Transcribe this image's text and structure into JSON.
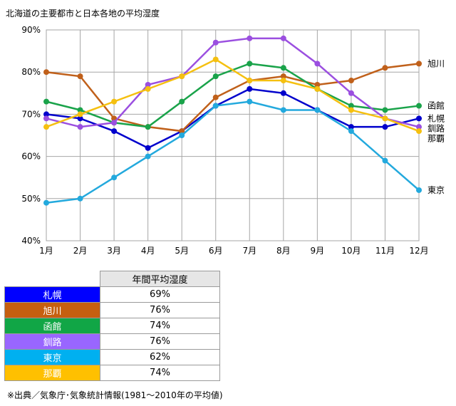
{
  "chart_data": {
    "type": "line",
    "title": "北海道の主要都市と日本各地の平均湿度",
    "categories": [
      "1月",
      "2月",
      "3月",
      "4月",
      "5月",
      "6月",
      "7月",
      "8月",
      "9月",
      "10月",
      "11月",
      "12月"
    ],
    "y_ticks": [
      "40%",
      "50%",
      "60%",
      "70%",
      "80%",
      "90%"
    ],
    "ylim": [
      40,
      90
    ],
    "grid": true,
    "legend": "right-end labels",
    "series": [
      {
        "name": "札幌",
        "color": "#0000cc",
        "values": [
          70,
          69,
          66,
          62,
          66,
          72,
          76,
          75,
          71,
          67,
          67,
          69
        ]
      },
      {
        "name": "旭川",
        "color": "#c0601a",
        "values": [
          80,
          79,
          69,
          67,
          66,
          74,
          78,
          79,
          77,
          78,
          81,
          82
        ]
      },
      {
        "name": "函館",
        "color": "#1aa34a",
        "values": [
          73,
          71,
          68,
          67,
          73,
          79,
          82,
          81,
          76,
          72,
          71,
          72
        ]
      },
      {
        "name": "釧路",
        "color": "#9b4fe0",
        "values": [
          69,
          67,
          68,
          77,
          79,
          87,
          88,
          88,
          82,
          75,
          69,
          67
        ]
      },
      {
        "name": "東京",
        "color": "#23a9dd",
        "values": [
          49,
          50,
          55,
          60,
          65,
          72,
          73,
          71,
          71,
          66,
          59,
          52
        ]
      },
      {
        "name": "那覇",
        "color": "#f5c010",
        "values": [
          67,
          70,
          73,
          76,
          79,
          83,
          78,
          78,
          76,
          71,
          69,
          66
        ]
      }
    ]
  },
  "table": {
    "header": "年間平均湿度",
    "rows": [
      {
        "city": "札幌",
        "value": "69%",
        "color": "#0000ff"
      },
      {
        "city": "旭川",
        "value": "76%",
        "color": "#c65f10"
      },
      {
        "city": "函館",
        "value": "74%",
        "color": "#11a646"
      },
      {
        "city": "釧路",
        "value": "76%",
        "color": "#9966ff"
      },
      {
        "city": "東京",
        "value": "62%",
        "color": "#00b0f0"
      },
      {
        "city": "那覇",
        "value": "74%",
        "color": "#ffc000"
      }
    ]
  },
  "footnote": "※出典／気象庁･気象統計情報(1981～2010年の平均値)"
}
